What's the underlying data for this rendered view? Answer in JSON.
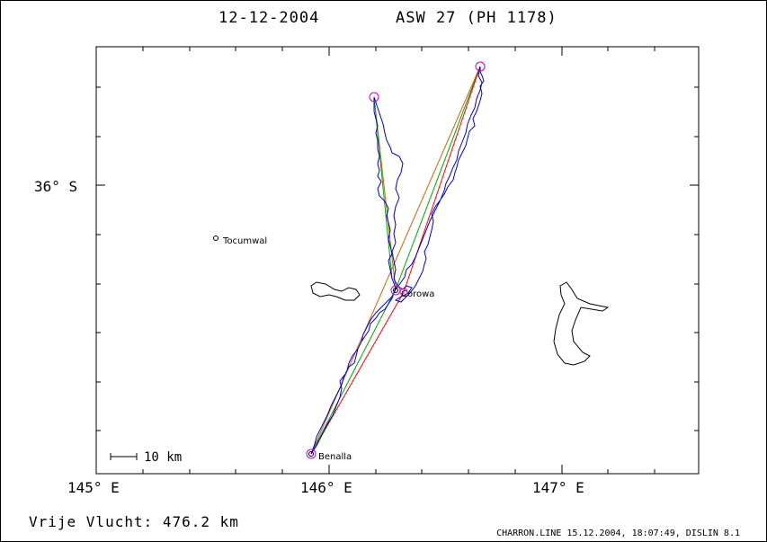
{
  "header": {
    "date": "12-12-2004",
    "glider": "ASW 27 (PH 1178)"
  },
  "axes": {
    "y_tick_label": "36° S",
    "x_tick_labels": [
      "145° E",
      "146° E",
      "147° E"
    ]
  },
  "scale_bar": {
    "label": "10 km"
  },
  "towns": {
    "tocumwal": "Tocumwal",
    "corowa": "Corowa",
    "benalla": "Benalla"
  },
  "footer": {
    "distance": "Vrije Vlucht:  476.2 km",
    "credit": "CHARRON.LINE 15.12.2004, 18:07:49, DISLIN 8.1"
  },
  "colors": {
    "track": "#0000cc",
    "turnpoint": "#cc00cc",
    "leg_red": "#ff0000",
    "leg_orange": "#cc6600",
    "leg_green": "#00aa00"
  }
}
